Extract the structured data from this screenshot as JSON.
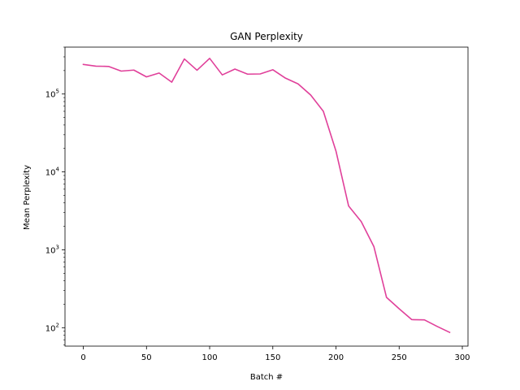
{
  "chart_data": {
    "type": "line",
    "title": "GAN Perplexity",
    "xlabel": "Batch #",
    "ylabel": "Mean Perplexity",
    "xlim": [
      -14.5,
      304.5
    ],
    "ylim": [
      58,
      400000
    ],
    "yscale": "log",
    "xticks": [
      0,
      50,
      100,
      150,
      200,
      250,
      300
    ],
    "yticks": [
      {
        "value": 100,
        "base": "10",
        "exp": "2"
      },
      {
        "value": 1000,
        "base": "10",
        "exp": "3"
      },
      {
        "value": 10000,
        "base": "10",
        "exp": "4"
      },
      {
        "value": 100000,
        "base": "10",
        "exp": "5"
      }
    ],
    "grid": false,
    "series": [
      {
        "color": "#e0409a",
        "x": [
          0,
          10,
          20,
          30,
          40,
          50,
          60,
          70,
          80,
          90,
          100,
          110,
          120,
          130,
          140,
          150,
          160,
          170,
          180,
          190,
          200,
          210,
          220,
          230,
          240,
          250,
          260,
          270,
          280,
          290
        ],
        "y": [
          240000,
          228000,
          226000,
          197000,
          203000,
          166000,
          186000,
          142000,
          282000,
          202000,
          287000,
          176000,
          209000,
          180000,
          181000,
          205000,
          160000,
          135000,
          97000,
          60000,
          18500,
          3650,
          2300,
          1100,
          245,
          175,
          127,
          126,
          104,
          87
        ]
      }
    ]
  }
}
